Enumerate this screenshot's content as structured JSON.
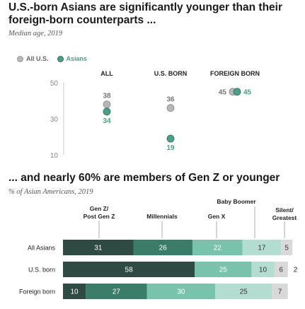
{
  "title1": "U.S.-born Asians are significantly younger than their foreign-born counterparts ...",
  "subtitle1": "Median age, 2019",
  "title2": "... and nearly 60% are members of Gen Z or younger",
  "subtitle2": "% of Asian Americans, 2019",
  "colors": {
    "all_us": "#b7b7b9",
    "asians": "#4d9e86",
    "gen_z": "#2f4a43",
    "millennials": "#3b7c69",
    "gen_x": "#79c3ad",
    "boomer": "#b4ddd1",
    "silent": "#d9d9d9"
  },
  "chart_data": [
    {
      "type": "scatter",
      "title": "U.S.-born Asians are significantly younger than their foreign-born counterparts ...",
      "subtitle": "Median age, 2019",
      "categories": [
        "ALL",
        "U.S. BORN",
        "FOREIGN BORN"
      ],
      "series": [
        {
          "name": "All U.S.",
          "values": [
            38,
            36,
            45
          ]
        },
        {
          "name": "Asians",
          "values": [
            34,
            19,
            45
          ]
        }
      ],
      "y_ticks": [
        "10",
        "30",
        "50"
      ],
      "ylim": [
        10,
        50
      ],
      "legend": "top-left",
      "grid": false
    },
    {
      "type": "bar",
      "orientation": "horizontal-stacked",
      "title": "... and nearly 60% are members of Gen Z or younger",
      "subtitle": "% of Asian Americans, 2019",
      "categories": [
        "All Asians",
        "U.S. born",
        "Foreign born"
      ],
      "series": [
        {
          "name": "Gen Z/ Post Gen Z",
          "values": [
            31,
            58,
            10
          ]
        },
        {
          "name": "Millennials",
          "values": [
            26,
            0,
            27
          ]
        },
        {
          "name": "Gen X",
          "values": [
            22,
            25,
            30
          ]
        },
        {
          "name": "Baby Boomer",
          "values": [
            17,
            10,
            25
          ]
        },
        {
          "name": "Silent/ Greatest",
          "values": [
            5,
            6,
            7
          ]
        }
      ],
      "outside_labels": [
        "",
        "2",
        ""
      ],
      "xlim": [
        0,
        100
      ]
    }
  ],
  "legend_labels": [
    "All U.S.",
    "Asians"
  ],
  "gen_header": {
    "gen_z_line1": "Gen Z/",
    "gen_z_line2": "Post Gen Z",
    "millennials": "Millennials",
    "gen_x": "Gen X",
    "boomer": "Baby Boomer",
    "silent_line1": "Silent/",
    "silent_line2": "Greatest"
  }
}
